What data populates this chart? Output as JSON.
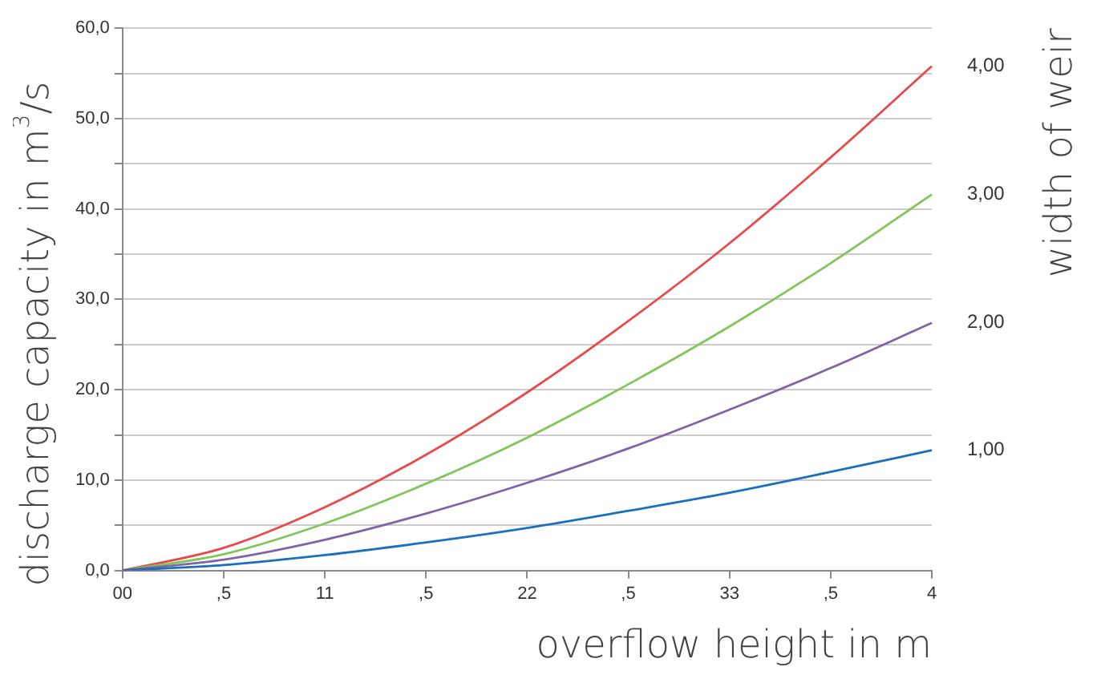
{
  "chart_data": {
    "type": "line",
    "xlabel": "overflow height in m",
    "ylabel": "discharge capacity in m$^{3}$/s",
    "y2label": "width of weir",
    "categories": [
      "00",
      ",5",
      "11",
      ",5",
      "22",
      ",5",
      "33",
      ",5",
      "4"
    ],
    "series": [
      {
        "name": "1,00",
        "color": "#1a6fbf",
        "values": [
          0,
          0.6,
          1.7,
          3.1,
          4.7,
          6.6,
          8.6,
          10.9,
          13.3
        ]
      },
      {
        "name": "2,00",
        "color": "#8064a8",
        "values": [
          0,
          1.2,
          3.4,
          6.3,
          9.7,
          13.5,
          17.8,
          22.4,
          27.4
        ]
      },
      {
        "name": "3,00",
        "color": "#80c65a",
        "values": [
          0,
          1.8,
          5.2,
          9.6,
          14.7,
          20.6,
          27.0,
          34.0,
          41.6
        ]
      },
      {
        "name": "4,00",
        "color": "#e8494a",
        "values": [
          0,
          2.5,
          7.0,
          12.8,
          19.7,
          27.6,
          36.2,
          45.7,
          55.8
        ]
      }
    ],
    "ylim": [
      0,
      60
    ],
    "yticks": [
      {
        "value": 0,
        "label": "0,0"
      },
      {
        "value": 5,
        "label": null
      },
      {
        "value": 10,
        "label": "10,0"
      },
      {
        "value": 15,
        "label": null
      },
      {
        "value": 20,
        "label": "20,0"
      },
      {
        "value": 25,
        "label": null
      },
      {
        "value": 30,
        "label": "30,0"
      },
      {
        "value": 35,
        "label": null
      },
      {
        "value": 40,
        "label": "40,0"
      },
      {
        "value": 45,
        "label": null
      },
      {
        "value": 50,
        "label": "50,0"
      },
      {
        "value": 55,
        "label": null
      },
      {
        "value": 60,
        "label": "60,0"
      }
    ],
    "grid": "y",
    "legend": false,
    "marker": "none",
    "line_style": "solid"
  }
}
